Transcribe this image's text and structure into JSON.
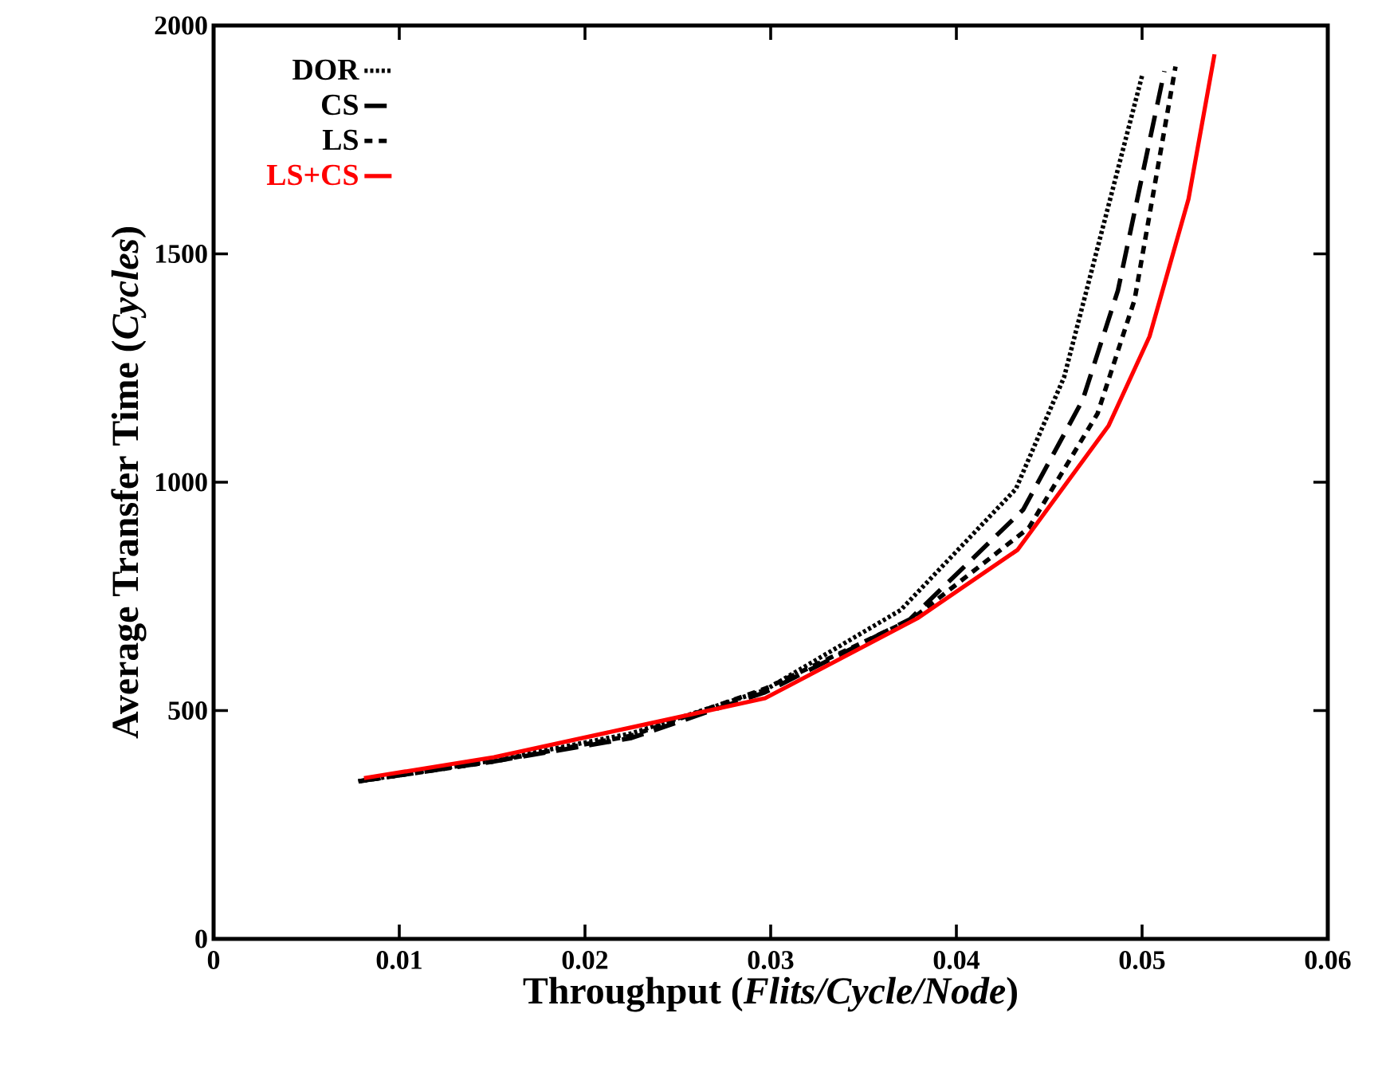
{
  "chart_data": {
    "type": "line",
    "xlabel": "Throughput (*Flits/Cycle/Node*)",
    "ylabel": "Average Transfer Time (*Cycles*)",
    "xlim": [
      0,
      0.06
    ],
    "xticks": [
      0,
      0.01,
      0.02,
      0.03,
      0.04,
      0.05,
      0.06
    ],
    "ylim": [
      0,
      2000
    ],
    "yticks": [
      0,
      500,
      1000,
      1500,
      2000
    ],
    "grid": false,
    "legend": "top left",
    "series": [
      {
        "name": "DOR",
        "color": "#000000",
        "line_style": "dotted",
        "x": [
          0.0078,
          0.015,
          0.0225,
          0.0297,
          0.037,
          0.0432,
          0.0458,
          0.05
        ],
        "values": [
          345,
          390,
          450,
          545,
          720,
          985,
          1230,
          1890
        ]
      },
      {
        "name": "CS",
        "color": "#000000",
        "line_style": "dashed",
        "x": [
          0.0078,
          0.015,
          0.0225,
          0.0297,
          0.0375,
          0.0436,
          0.0468,
          0.0487,
          0.0512
        ],
        "values": [
          345,
          388,
          440,
          540,
          700,
          940,
          1180,
          1420,
          1900
        ]
      },
      {
        "name": "LS",
        "color": "#000000",
        "line_style": "dashed",
        "x": [
          0.0078,
          0.015,
          0.0225,
          0.0297,
          0.0376,
          0.0439,
          0.0476,
          0.0496,
          0.0518
        ],
        "values": [
          345,
          388,
          445,
          548,
          700,
          900,
          1150,
          1400,
          1910
        ]
      },
      {
        "name": "LS+CS",
        "color": "#ff0000",
        "line_style": "solid",
        "x": [
          0.0081,
          0.0151,
          0.0226,
          0.0297,
          0.0379,
          0.0433,
          0.0482,
          0.0504,
          0.0525,
          0.0539
        ],
        "values": [
          352,
          398,
          464,
          527,
          702,
          852,
          1124,
          1319,
          1620,
          1937
        ]
      }
    ]
  }
}
